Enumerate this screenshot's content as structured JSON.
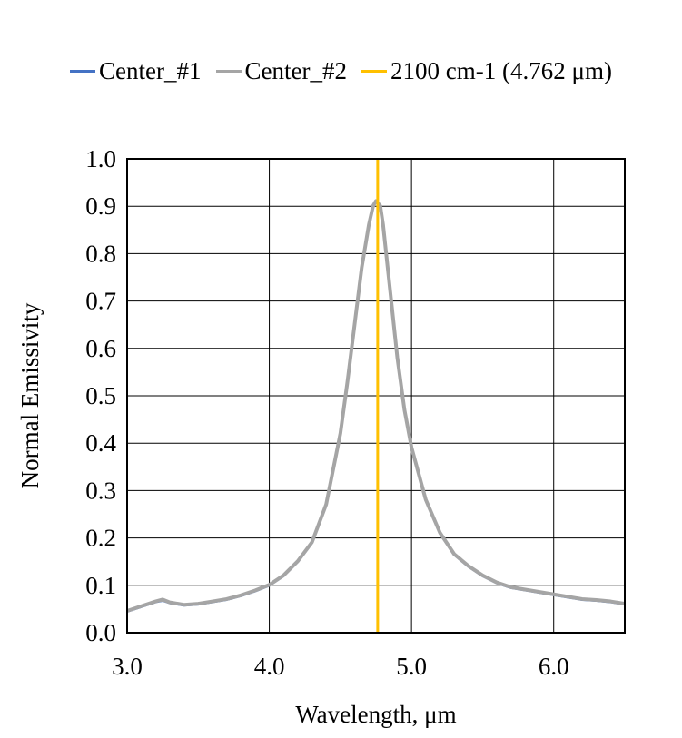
{
  "legend": [
    {
      "label": "Center_#1",
      "color": "#4472c4"
    },
    {
      "label": "Center_#2",
      "color": "#a5a5a5"
    },
    {
      "label": "2100 cm-1 (4.762 μm)",
      "color": "#ffc000"
    }
  ],
  "chart_data": {
    "type": "line",
    "title": "",
    "xlabel": "Wavelength, μm",
    "ylabel": "Normal Emissivity",
    "xlim": [
      3.0,
      6.5
    ],
    "ylim": [
      0.0,
      1.0
    ],
    "x_ticks": [
      3.0,
      4.0,
      5.0,
      6.0
    ],
    "x_tick_labels": [
      "3.0",
      "4.0",
      "5.0",
      "6.0"
    ],
    "y_ticks": [
      0.0,
      0.1,
      0.2,
      0.3,
      0.4,
      0.5,
      0.6,
      0.7,
      0.8,
      0.9,
      1.0
    ],
    "y_tick_labels": [
      "0.0",
      "0.1",
      "0.2",
      "0.3",
      "0.4",
      "0.5",
      "0.6",
      "0.7",
      "0.8",
      "0.9",
      "1.0"
    ],
    "grid": true,
    "legend_position": "top",
    "series": [
      {
        "name": "Center_#1",
        "color": "#4472c4",
        "x": [
          3.0,
          3.1,
          3.2,
          3.25,
          3.3,
          3.4,
          3.5,
          3.6,
          3.7,
          3.8,
          3.9,
          4.0,
          4.1,
          4.2,
          4.3,
          4.4,
          4.5,
          4.55,
          4.6,
          4.65,
          4.7,
          4.73,
          4.75,
          4.78,
          4.8,
          4.85,
          4.9,
          4.95,
          5.0,
          5.1,
          5.2,
          5.3,
          5.4,
          5.5,
          5.6,
          5.7,
          5.8,
          5.9,
          6.0,
          6.1,
          6.2,
          6.3,
          6.4,
          6.5
        ],
        "y": [
          0.045,
          0.055,
          0.065,
          0.068,
          0.063,
          0.058,
          0.06,
          0.065,
          0.07,
          0.078,
          0.088,
          0.1,
          0.12,
          0.15,
          0.19,
          0.27,
          0.42,
          0.53,
          0.65,
          0.77,
          0.86,
          0.9,
          0.91,
          0.9,
          0.86,
          0.72,
          0.58,
          0.47,
          0.39,
          0.28,
          0.21,
          0.165,
          0.14,
          0.12,
          0.105,
          0.095,
          0.09,
          0.085,
          0.08,
          0.075,
          0.07,
          0.068,
          0.065,
          0.06
        ]
      },
      {
        "name": "Center_#2",
        "color": "#a5a5a5",
        "x": [
          3.0,
          3.1,
          3.2,
          3.25,
          3.3,
          3.4,
          3.5,
          3.6,
          3.7,
          3.8,
          3.9,
          4.0,
          4.1,
          4.2,
          4.3,
          4.4,
          4.5,
          4.55,
          4.6,
          4.65,
          4.7,
          4.73,
          4.75,
          4.78,
          4.8,
          4.85,
          4.9,
          4.95,
          5.0,
          5.1,
          5.2,
          5.3,
          5.4,
          5.5,
          5.6,
          5.7,
          5.8,
          5.9,
          6.0,
          6.1,
          6.2,
          6.3,
          6.4,
          6.5
        ],
        "y": [
          0.046,
          0.056,
          0.066,
          0.07,
          0.064,
          0.059,
          0.061,
          0.066,
          0.071,
          0.079,
          0.089,
          0.101,
          0.121,
          0.151,
          0.191,
          0.271,
          0.421,
          0.531,
          0.651,
          0.771,
          0.861,
          0.901,
          0.911,
          0.901,
          0.861,
          0.721,
          0.581,
          0.471,
          0.391,
          0.281,
          0.211,
          0.166,
          0.141,
          0.121,
          0.106,
          0.096,
          0.091,
          0.086,
          0.081,
          0.076,
          0.071,
          0.069,
          0.066,
          0.061
        ]
      },
      {
        "name": "2100 cm-1 (4.762 μm)",
        "color": "#ffc000",
        "x": [
          4.762,
          4.762
        ],
        "y": [
          0.0,
          1.0
        ]
      }
    ]
  }
}
